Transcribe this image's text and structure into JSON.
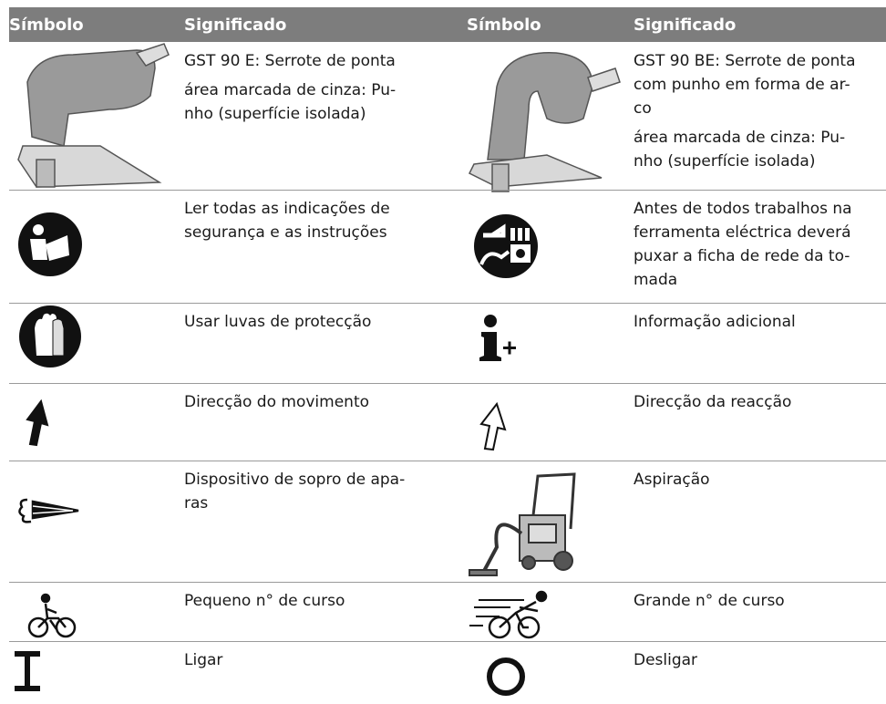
{
  "header": [
    "Símbolo",
    "Significado",
    "Símbolo",
    "Significado"
  ],
  "rows": [
    {
      "left": [
        [
          "GST 90 E: Serrote de ponta"
        ],
        [
          "área marcada de cinza: Pu-",
          "nho (superfície isolada)"
        ]
      ],
      "right": [
        [
          "GST 90 BE: Serrote de ponta",
          "com punho em forma de ar-",
          "co"
        ],
        [
          "área marcada de cinza: Pu-",
          "nho (superfície isolada)"
        ]
      ]
    },
    {
      "left": [
        [
          "Ler todas as indicações de",
          "segurança e as instruções"
        ]
      ],
      "right": [
        [
          "Antes de todos trabalhos na",
          "ferramenta eléctrica deverá",
          "puxar a ficha de rede da to-",
          "mada"
        ]
      ]
    },
    {
      "left": [
        [
          "Usar luvas de protecção"
        ]
      ],
      "right": [
        [
          "Informação adicional"
        ]
      ]
    },
    {
      "left": [
        [
          "Direcção do movimento"
        ]
      ],
      "right": [
        [
          "Direcção da reacção"
        ]
      ]
    },
    {
      "left": [
        [
          "Dispositivo de sopro de apa-",
          "ras"
        ]
      ],
      "right": [
        [
          "Aspiração"
        ]
      ]
    },
    {
      "left": [
        [
          "Pequeno n° de curso"
        ]
      ],
      "right": [
        [
          "Grande n° de curso"
        ]
      ]
    },
    {
      "left": [
        [
          "Ligar"
        ]
      ],
      "right": [
        [
          "Desligar"
        ]
      ]
    }
  ]
}
